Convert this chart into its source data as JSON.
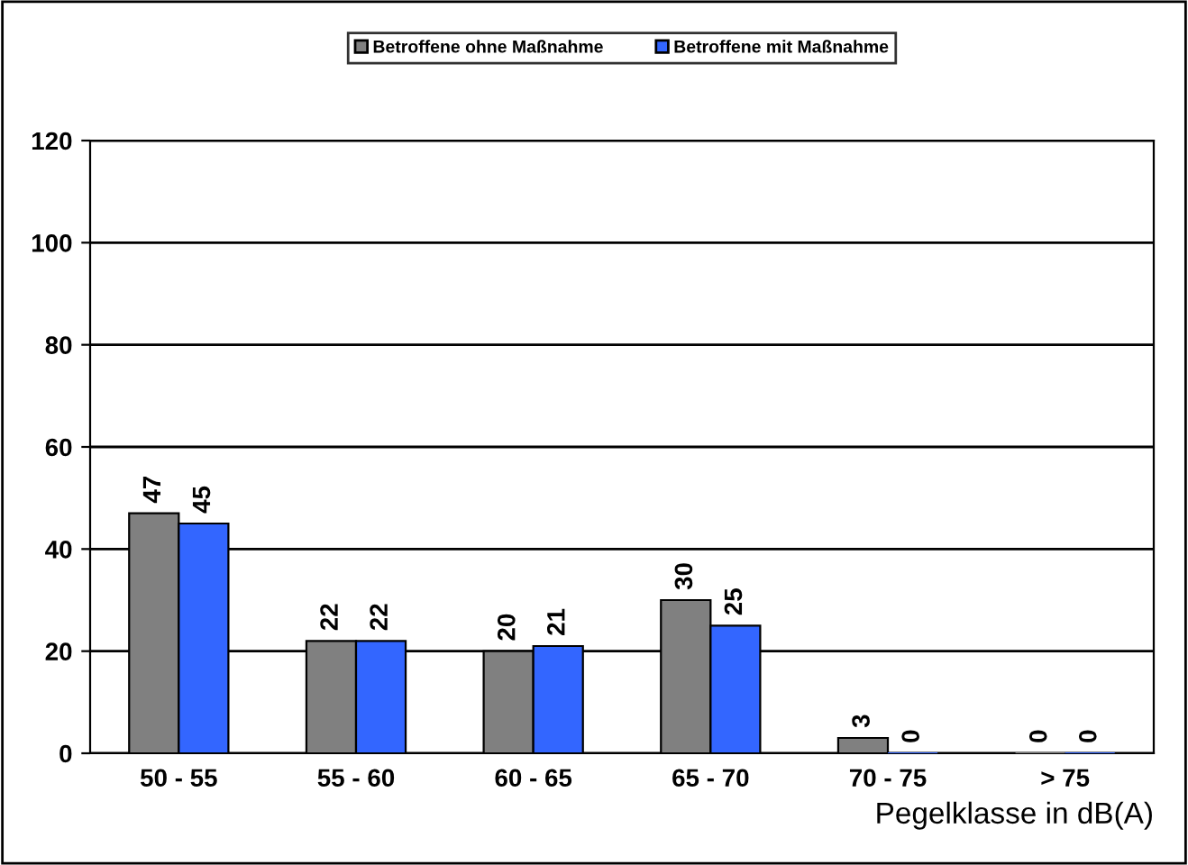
{
  "chart_data": {
    "type": "bar",
    "xlabel": "Pegelklasse in dB(A)",
    "categories": [
      "50 - 55",
      "55 - 60",
      "60 - 65",
      "65 - 70",
      "70 - 75",
      "> 75"
    ],
    "series": [
      {
        "name": "Betroffene ohne Maßnahme",
        "color": "#808080",
        "values": [
          47,
          22,
          20,
          30,
          3,
          0
        ]
      },
      {
        "name": "Betroffene mit Maßnahme",
        "color": "#3366ff",
        "values": [
          45,
          22,
          21,
          25,
          0,
          0
        ]
      }
    ],
    "ylim": [
      0,
      120
    ],
    "yticks": [
      0,
      20,
      40,
      60,
      80,
      100,
      120
    ],
    "grid": "y",
    "legend": "top",
    "data_labels": true
  }
}
